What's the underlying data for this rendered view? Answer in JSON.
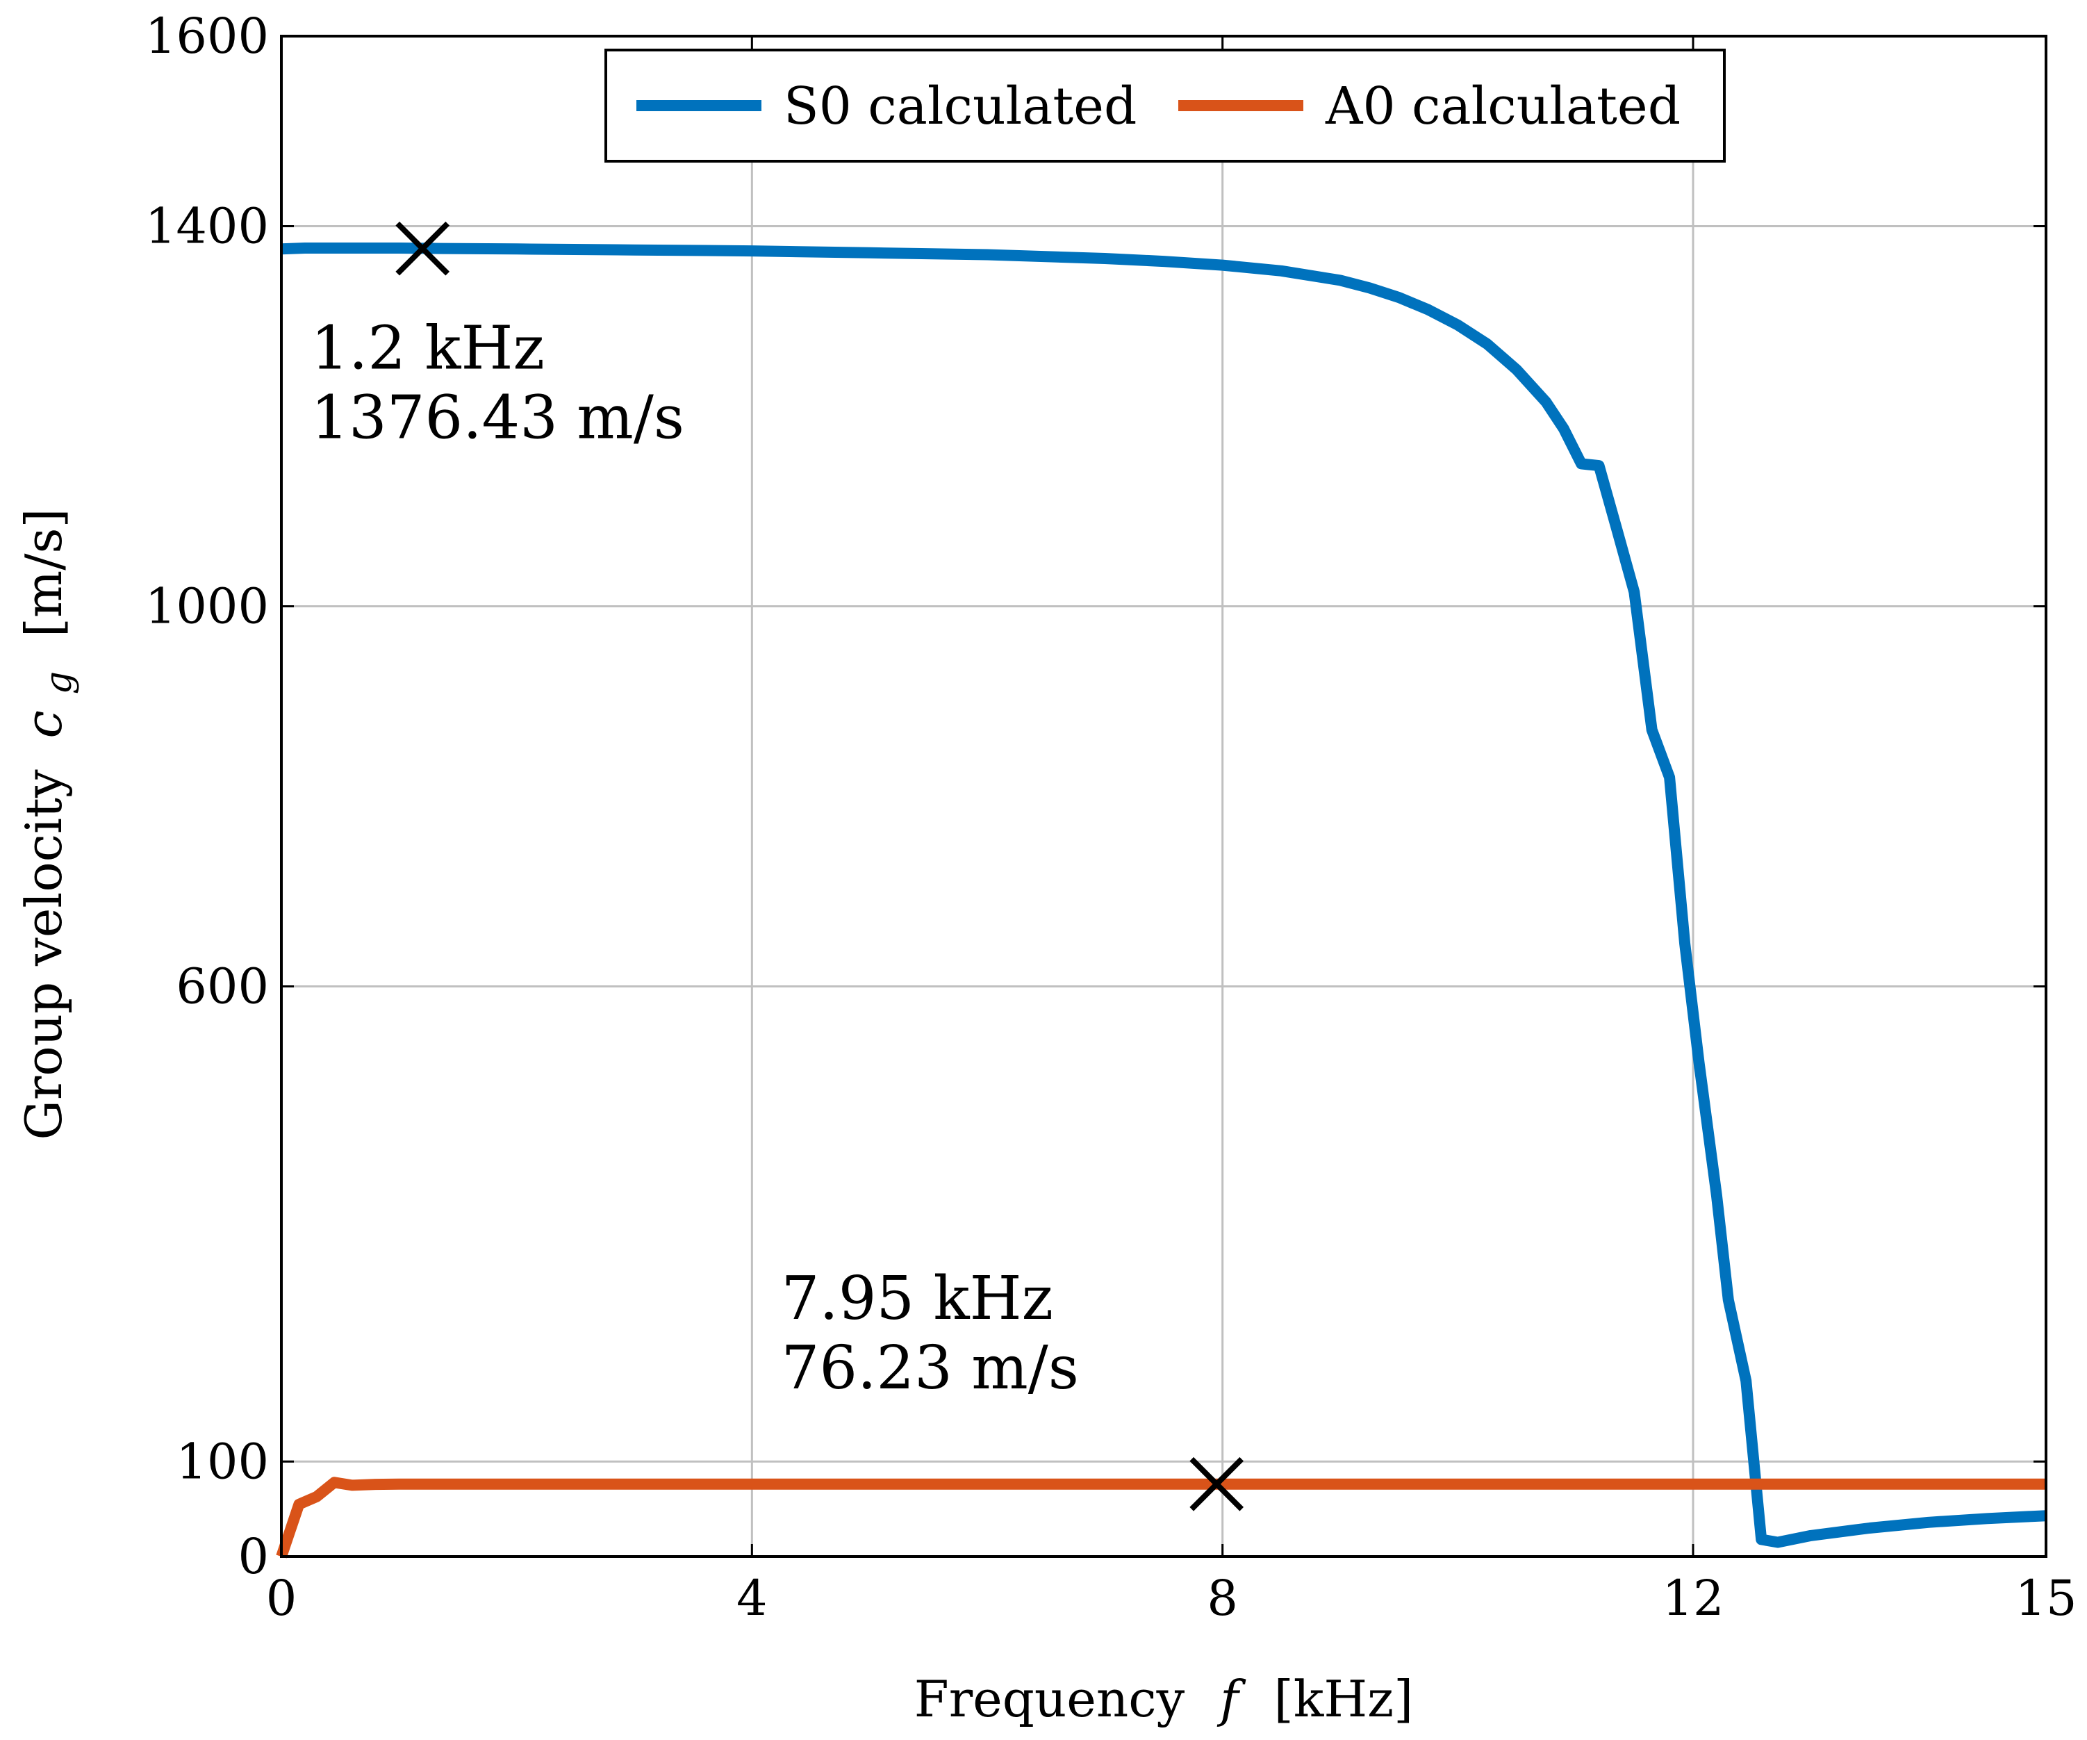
{
  "chart_data": {
    "type": "line",
    "title": "",
    "xlabel": "Frequency",
    "xlabel_symbol": "f",
    "xlabel_unit": "[kHz]",
    "ylabel": "Group velocity",
    "ylabel_symbol": "c",
    "ylabel_subscript": "g",
    "ylabel_unit": "[m/s]",
    "xlim": [
      0,
      15
    ],
    "ylim": [
      0,
      1600
    ],
    "x_ticks": [
      0,
      4,
      8,
      12,
      15
    ],
    "y_ticks": [
      0,
      100,
      600,
      1000,
      1400,
      1600
    ],
    "grid": true,
    "legend_position": "top-center",
    "series": [
      {
        "name": "S0 calculated",
        "color": "#0072bd",
        "x": [
          0,
          0.2,
          0.5,
          1,
          1.5,
          2,
          3,
          4,
          5,
          6,
          7,
          7.5,
          8,
          8.5,
          9,
          9.25,
          9.5,
          9.75,
          10,
          10.25,
          10.5,
          10.75,
          10.9,
          11.05,
          11.2,
          11.35,
          11.5,
          11.65,
          11.8,
          11.93,
          12.05,
          12.2,
          12.3,
          12.45,
          12.58,
          12.72,
          13,
          13.5,
          14,
          14.5,
          15
        ],
        "y": [
          1376,
          1377,
          1377,
          1377,
          1376.4,
          1376,
          1375,
          1374,
          1372,
          1370,
          1366,
          1363,
          1359,
          1353,
          1343,
          1335,
          1325,
          1312,
          1296,
          1276,
          1249,
          1215,
          1187,
          1150,
          1148,
          1082,
          1015,
          870,
          820,
          645,
          520,
          380,
          270,
          185,
          18,
          15,
          22,
          30,
          36,
          40,
          43
        ]
      },
      {
        "name": "A0 calculated",
        "color": "#d95319",
        "x": [
          0,
          0.15,
          0.3,
          0.45,
          0.6,
          0.8,
          1,
          2,
          4,
          7.95,
          10,
          12,
          15
        ],
        "y": [
          0,
          55,
          63,
          78,
          75,
          76,
          76.2,
          76.2,
          76.2,
          76.23,
          76.2,
          76.2,
          76.2
        ]
      }
    ],
    "markers": [
      {
        "series": "S0 calculated",
        "x": 1.2,
        "y": 1376.43,
        "symbol": "x"
      },
      {
        "series": "A0 calculated",
        "x": 7.95,
        "y": 76.23,
        "symbol": "x"
      }
    ],
    "annotations": [
      {
        "lines": [
          "1.2 kHz",
          "1376.43 m/s"
        ],
        "x": 0.25,
        "y": 1250
      },
      {
        "lines": [
          "7.95 kHz",
          "76.23 m/s"
        ],
        "x": 4.25,
        "y": 250
      }
    ]
  }
}
